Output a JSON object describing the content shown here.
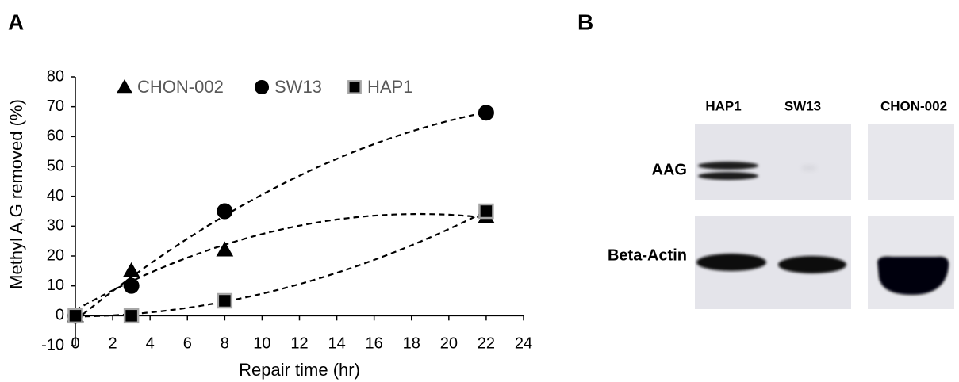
{
  "chart_data": {
    "type": "scatter",
    "x_label": "Repair time (hr)",
    "y_label": "Methyl A,G removed (%)",
    "series": [
      {
        "name": "CHON-002",
        "color": "#000000",
        "marker": "triangle",
        "x": [
          0,
          3,
          8,
          22
        ],
        "values": [
          0,
          15,
          22,
          33
        ]
      },
      {
        "name": "SW13",
        "color": "#000000",
        "marker": "circle",
        "x": [
          0,
          3,
          8,
          22
        ],
        "values": [
          0,
          10,
          35,
          68
        ]
      },
      {
        "name": "HAP1",
        "color": "#000000",
        "edgecolor": "#a6a6a6",
        "marker": "square",
        "x": [
          0,
          3,
          8,
          22
        ],
        "values": [
          0,
          0,
          5,
          35
        ]
      }
    ],
    "trendline": true,
    "xlim": [
      0,
      24
    ],
    "xticks": [
      0,
      2,
      4,
      6,
      8,
      10,
      12,
      14,
      16,
      18,
      20,
      22,
      24
    ],
    "ylim": [
      -10,
      80
    ],
    "yticks": [
      -10,
      0,
      10,
      20,
      30,
      40,
      50,
      60,
      70,
      80
    ],
    "grid": false,
    "legend": "top"
  },
  "panel_labels": [
    "A",
    "B"
  ],
  "blot": {
    "lanes": [
      "HAP1",
      "SW13",
      "CHON-002"
    ],
    "rows": [
      "AAG",
      "Beta-Actin"
    ]
  }
}
